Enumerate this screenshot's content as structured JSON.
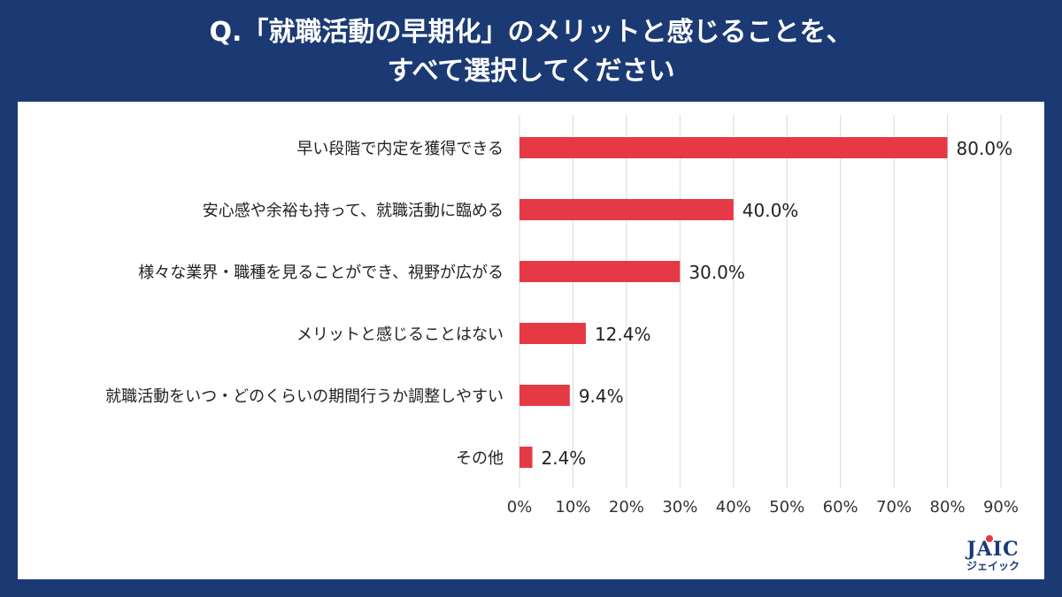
{
  "header": {
    "title_line1": "Q.「就職活動の早期化」のメリットと感じることを、",
    "title_line2": "すべて選択してください"
  },
  "logo": {
    "main": "JAIC",
    "sub": "ジェイック"
  },
  "colors": {
    "background": "#1b3a74",
    "bar": "#e63946",
    "grid": "#d9d9d9",
    "text": "#222222"
  },
  "chart_data": {
    "type": "bar",
    "orientation": "horizontal",
    "categories": [
      "早い段階で内定を獲得できる",
      "安心感や余裕も持って、就職活動に臨める",
      "様々な業界・職種を見ることができ、視野が広がる",
      "メリットと感じることはない",
      "就職活動をいつ・どのくらいの期間行うか調整しやすい",
      "その他"
    ],
    "values": [
      80.0,
      40.0,
      30.0,
      12.4,
      9.4,
      2.4
    ],
    "value_labels": [
      "80.0%",
      "40.0%",
      "30.0%",
      "12.4%",
      "9.4%",
      "2.4%"
    ],
    "xlim": [
      0,
      90
    ],
    "ticks": [
      0,
      10,
      20,
      30,
      40,
      50,
      60,
      70,
      80,
      90
    ],
    "tick_labels": [
      "0%",
      "10%",
      "20%",
      "30%",
      "40%",
      "50%",
      "60%",
      "70%",
      "80%",
      "90%"
    ],
    "grid": true
  }
}
